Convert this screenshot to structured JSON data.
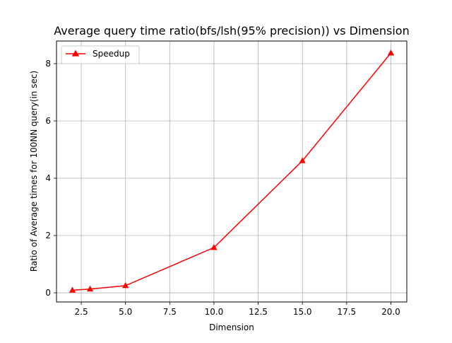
{
  "chart_data": {
    "type": "line",
    "title": "Average query time ratio(bfs/lsh(95% precision)) vs Dimension",
    "xlabel": "Dimension",
    "ylabel": "Ratio of Average times for 100NN query(in sec)",
    "xlim": [
      1.1,
      20.9
    ],
    "ylim": [
      -0.32,
      8.79
    ],
    "x_ticks": [
      2.5,
      5.0,
      7.5,
      10.0,
      12.5,
      15.0,
      17.5,
      20.0
    ],
    "x_tick_labels": [
      "2.5",
      "5.0",
      "7.5",
      "10.0",
      "12.5",
      "15.0",
      "17.5",
      "20.0"
    ],
    "y_ticks": [
      0,
      2,
      4,
      6,
      8
    ],
    "y_tick_labels": [
      "0",
      "2",
      "4",
      "6",
      "8"
    ],
    "grid": true,
    "legend_position": "top-left",
    "series": [
      {
        "name": "Speedup",
        "color": "#ff0000",
        "marker": "triangle-up",
        "x": [
          2,
          3,
          5,
          10,
          15,
          20
        ],
        "y": [
          0.09,
          0.13,
          0.25,
          1.58,
          4.61,
          8.37
        ]
      }
    ]
  }
}
